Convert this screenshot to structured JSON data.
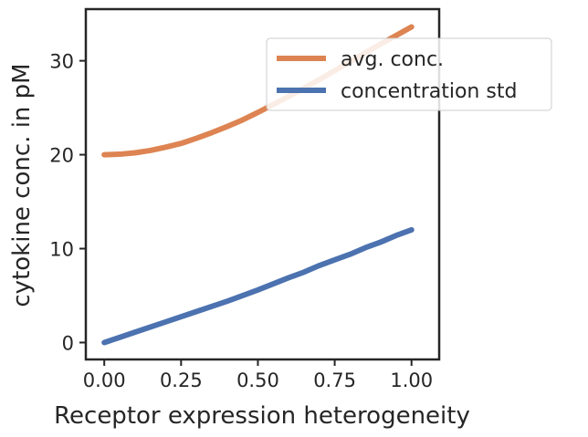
{
  "chart_data": {
    "type": "line",
    "xlabel": "Receptor expression heterogeneity",
    "ylabel": "cytokine conc. in pM",
    "xlim": [
      -0.06,
      1.09
    ],
    "ylim": [
      -1.8,
      35.5
    ],
    "xticks": [
      0.0,
      0.25,
      0.5,
      0.75,
      1.0
    ],
    "xtick_labels": [
      "0.00",
      "0.25",
      "0.50",
      "0.75",
      "1.00"
    ],
    "yticks": [
      0,
      10,
      20,
      30
    ],
    "ytick_labels": [
      "0",
      "10",
      "20",
      "30"
    ],
    "grid": false,
    "legend_position": "top-right",
    "series": [
      {
        "name": "avg. conc.",
        "color": "#dd8452",
        "x": [
          0.0,
          0.05,
          0.1,
          0.15,
          0.2,
          0.25,
          0.3,
          0.35,
          0.4,
          0.45,
          0.5,
          0.55,
          0.6,
          0.65,
          0.7,
          0.75,
          0.8,
          0.85,
          0.9,
          0.95,
          1.0
        ],
        "y": [
          20.0,
          20.05,
          20.2,
          20.45,
          20.8,
          21.2,
          21.75,
          22.35,
          23.0,
          23.7,
          24.5,
          25.35,
          26.2,
          27.1,
          28.0,
          28.95,
          29.9,
          30.85,
          31.8,
          32.7,
          33.6
        ]
      },
      {
        "name": "concentration std",
        "color": "#4c72b0",
        "x": [
          0.0,
          0.1,
          0.2,
          0.3,
          0.4,
          0.5,
          0.6,
          0.65,
          0.7,
          0.75,
          0.8,
          0.85,
          0.9,
          0.95,
          1.0
        ],
        "y": [
          0.0,
          1.1,
          2.2,
          3.3,
          4.4,
          5.6,
          6.9,
          7.5,
          8.2,
          8.8,
          9.4,
          10.1,
          10.7,
          11.4,
          12.0
        ]
      }
    ]
  }
}
